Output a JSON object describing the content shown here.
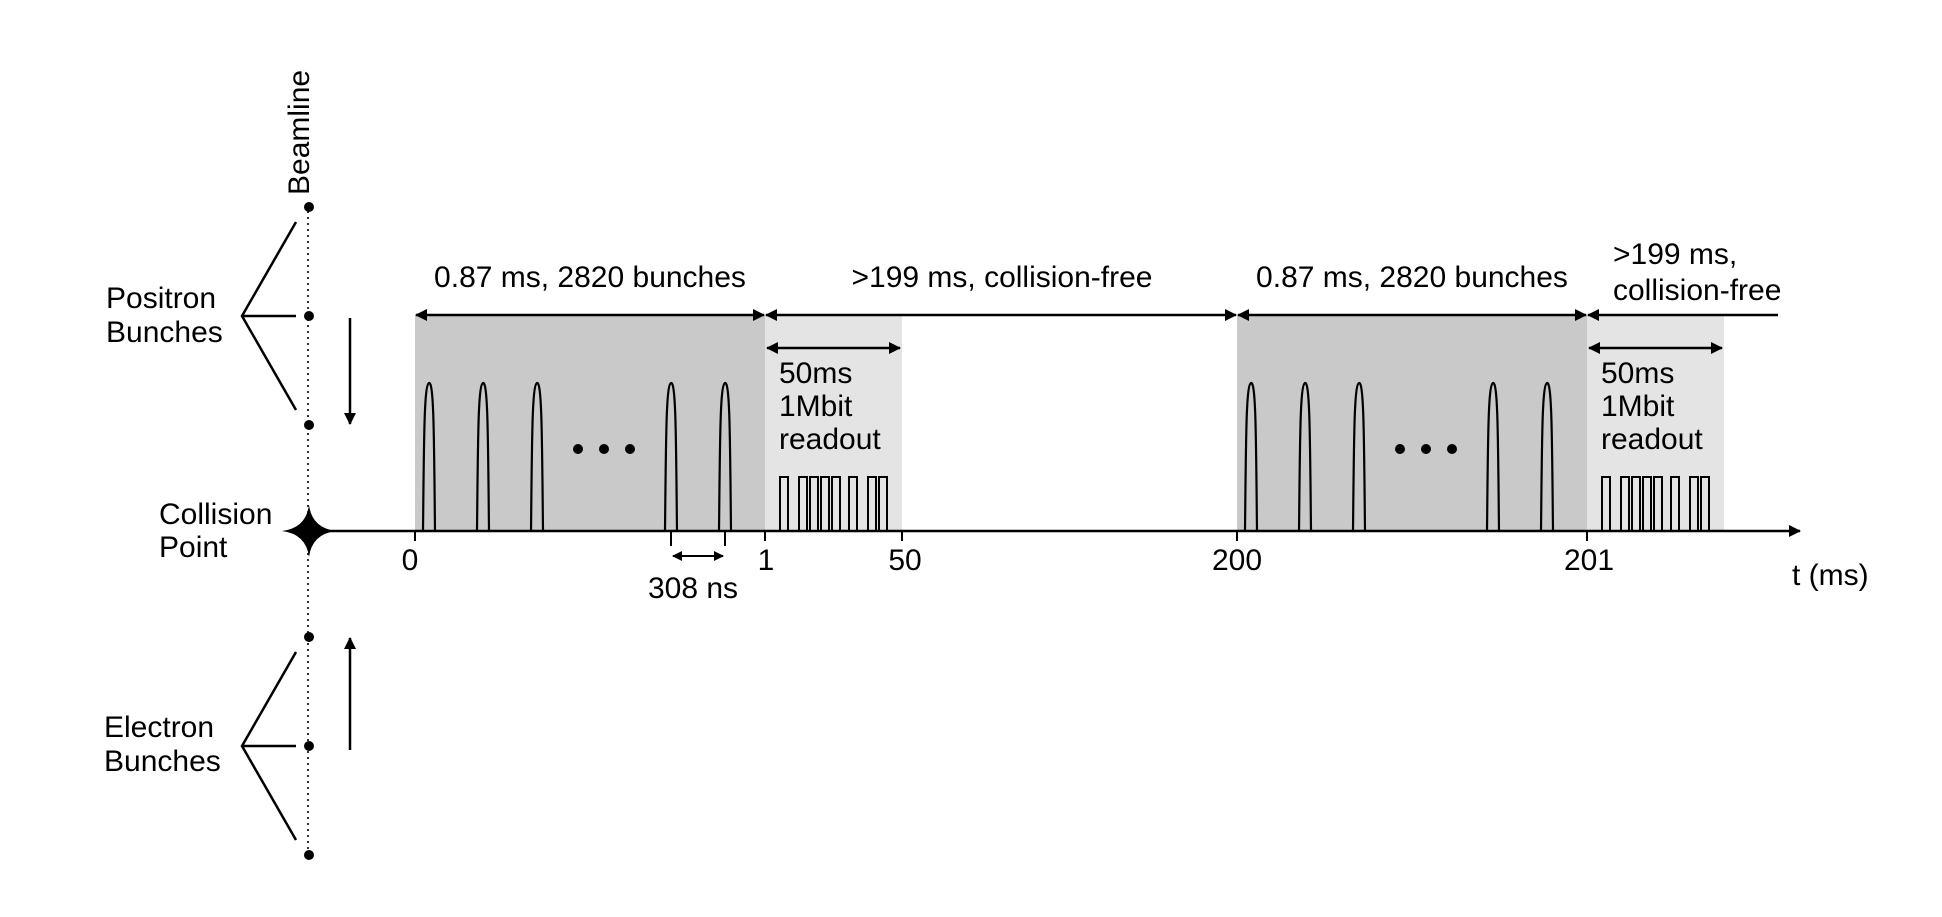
{
  "beamline_label": "Beamline",
  "positron_label": [
    "Positron",
    "Bunches"
  ],
  "electron_label": [
    "Electron",
    "Bunches"
  ],
  "collision_label": [
    "Collision",
    "Point"
  ],
  "axis_label": "t (ms)",
  "ticks": [
    "0",
    "1",
    "50",
    "200",
    "201"
  ],
  "bunch_train_label": "0.87 ms, 2820 bunches",
  "collision_free_label": ">199 ms, collision-free",
  "collision_free_label_wrapped": [
    ">199 ms,",
    "collision-free"
  ],
  "readout_label": [
    "50ms",
    "1Mbit",
    "readout"
  ],
  "spacing_label": "308 ns",
  "colors": {
    "bunch_region": "#c9c9c9",
    "readout_region": "#e4e4e4",
    "ink": "#000000"
  }
}
